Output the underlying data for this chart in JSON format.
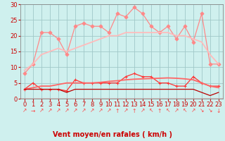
{
  "bg_color": "#cff0ee",
  "grid_color": "#a0c8c8",
  "xlabel": "Vent moyen/en rafales ( km/h )",
  "x": [
    0,
    1,
    2,
    3,
    4,
    5,
    6,
    7,
    8,
    9,
    10,
    11,
    12,
    13,
    14,
    15,
    16,
    17,
    18,
    19,
    20,
    21,
    22,
    23
  ],
  "ylim": [
    0,
    30
  ],
  "xlim": [
    -0.5,
    23.5
  ],
  "yticks": [
    0,
    5,
    10,
    15,
    20,
    25,
    30
  ],
  "series": [
    {
      "name": "rafales_jagged",
      "color": "#ff8888",
      "lw": 0.9,
      "marker": "D",
      "ms": 2.5,
      "values": [
        8,
        11,
        21,
        21,
        19,
        14,
        23,
        24,
        23,
        23,
        21,
        27,
        26,
        29,
        27,
        23,
        21,
        23,
        19,
        23,
        18,
        27,
        11,
        11
      ]
    },
    {
      "name": "rafales_smooth",
      "color": "#ffbbbb",
      "lw": 1.3,
      "marker": null,
      "ms": 0,
      "values": [
        9,
        11,
        14,
        15,
        16,
        15,
        16,
        17,
        18,
        19,
        20,
        20,
        21,
        21,
        21,
        21,
        21,
        21,
        20,
        20,
        19,
        18,
        14,
        11
      ]
    },
    {
      "name": "vent_moy_jagged",
      "color": "#ff3333",
      "lw": 0.9,
      "marker": "+",
      "ms": 3.5,
      "values": [
        3,
        5,
        3,
        3,
        3,
        2.5,
        6,
        5,
        5,
        5,
        5,
        5,
        7,
        8,
        7,
        7,
        5,
        5,
        4,
        4,
        7,
        5,
        4,
        4
      ]
    },
    {
      "name": "vent_moy_smooth",
      "color": "#ff6666",
      "lw": 1.3,
      "marker": null,
      "ms": 0,
      "values": [
        3,
        3.5,
        4,
        4,
        4.5,
        5,
        5,
        5,
        5,
        5.2,
        5.5,
        5.7,
        6,
        6.2,
        6.3,
        6.4,
        6.5,
        6.6,
        6.5,
        6.3,
        6,
        5,
        4,
        3.5
      ]
    },
    {
      "name": "vent_min",
      "color": "#bb0000",
      "lw": 0.9,
      "marker": null,
      "ms": 0,
      "values": [
        3,
        3,
        3,
        3,
        3,
        2,
        3,
        3,
        3,
        3,
        3,
        3,
        3,
        3,
        3,
        3,
        3,
        3,
        3,
        3,
        3,
        2,
        1,
        2
      ]
    }
  ],
  "arrows": [
    "↗",
    "→",
    "↗",
    "↗",
    "↗",
    "↗",
    "↗",
    "↗",
    "↗",
    "↗",
    "↗",
    "↑",
    "↗",
    "↑",
    "↗",
    "↖",
    "↑",
    "↖",
    "↗",
    "↖",
    "↗",
    "↘",
    "↘",
    "↓"
  ],
  "tick_label_color": "#cc0000",
  "axis_label_color": "#cc0000",
  "axis_label_fontsize": 7,
  "tick_fontsize": 6,
  "arrow_fontsize": 5.5
}
